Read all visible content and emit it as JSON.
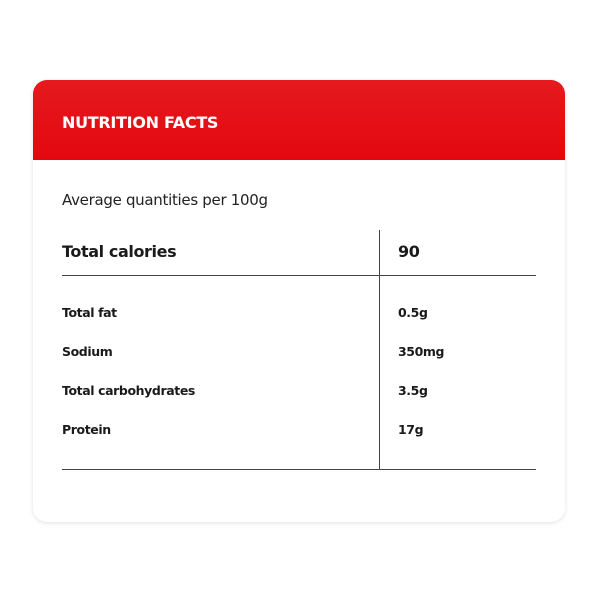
{
  "header": {
    "title": "NUTRITION FACTS"
  },
  "subtitle": "Average quantities per 100g",
  "table": {
    "head": [
      "Total calories",
      "90"
    ],
    "rows": [
      [
        "Total fat",
        "0.5g"
      ],
      [
        "Sodium",
        "350mg"
      ],
      [
        "Total carbohydrates",
        "3.5g"
      ],
      [
        "Protein",
        "17g"
      ]
    ]
  }
}
